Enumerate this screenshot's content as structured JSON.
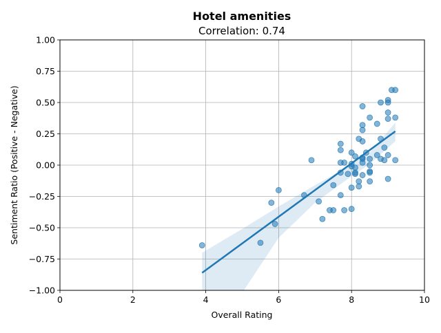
{
  "chart_data": {
    "type": "scatter",
    "title": "Hotel amenities",
    "subtitle": "Correlation: 0.74",
    "xlabel": "Overall Rating",
    "ylabel": "Sentiment Ratio (Positive - Negative)",
    "xlim": [
      0,
      10
    ],
    "ylim": [
      -1.0,
      1.0
    ],
    "xticks": [
      0,
      2,
      4,
      6,
      8,
      10
    ],
    "xtick_labels": [
      "0",
      "2",
      "4",
      "6",
      "8",
      "10"
    ],
    "yticks": [
      -1.0,
      -0.75,
      -0.5,
      -0.25,
      0.0,
      0.25,
      0.5,
      0.75,
      1.0
    ],
    "ytick_labels": [
      "−1.00",
      "−0.75",
      "−0.50",
      "−0.25",
      "0.00",
      "0.25",
      "0.50",
      "0.75",
      "1.00"
    ],
    "grid": true,
    "point_color": "#1f77b4",
    "line_color": "#1f77b4",
    "band_color": "#1f77b4",
    "points": [
      {
        "x": 3.9,
        "y": -0.64
      },
      {
        "x": 5.5,
        "y": -0.62
      },
      {
        "x": 5.8,
        "y": -0.3
      },
      {
        "x": 5.9,
        "y": -0.47
      },
      {
        "x": 6.0,
        "y": -0.2
      },
      {
        "x": 6.7,
        "y": -0.24
      },
      {
        "x": 6.9,
        "y": 0.04
      },
      {
        "x": 7.1,
        "y": -0.29
      },
      {
        "x": 7.2,
        "y": -0.43
      },
      {
        "x": 7.4,
        "y": -0.36
      },
      {
        "x": 7.5,
        "y": -0.36
      },
      {
        "x": 7.5,
        "y": -0.16
      },
      {
        "x": 7.7,
        "y": 0.17
      },
      {
        "x": 7.7,
        "y": 0.12
      },
      {
        "x": 7.7,
        "y": 0.02
      },
      {
        "x": 7.7,
        "y": -0.06
      },
      {
        "x": 7.7,
        "y": -0.24
      },
      {
        "x": 7.8,
        "y": -0.36
      },
      {
        "x": 7.8,
        "y": 0.02
      },
      {
        "x": 7.9,
        "y": -0.07
      },
      {
        "x": 8.0,
        "y": 0.1
      },
      {
        "x": 8.0,
        "y": 0.01
      },
      {
        "x": 8.0,
        "y": -0.01
      },
      {
        "x": 8.0,
        "y": -0.18
      },
      {
        "x": 8.0,
        "y": -0.35
      },
      {
        "x": 8.1,
        "y": 0.07
      },
      {
        "x": 8.1,
        "y": -0.02
      },
      {
        "x": 8.1,
        "y": -0.06
      },
      {
        "x": 8.1,
        "y": -0.07
      },
      {
        "x": 8.2,
        "y": 0.21
      },
      {
        "x": 8.2,
        "y": -0.13
      },
      {
        "x": 8.2,
        "y": -0.17
      },
      {
        "x": 8.3,
        "y": 0.47
      },
      {
        "x": 8.3,
        "y": 0.32
      },
      {
        "x": 8.3,
        "y": 0.28
      },
      {
        "x": 8.3,
        "y": 0.19
      },
      {
        "x": 8.3,
        "y": 0.06
      },
      {
        "x": 8.3,
        "y": 0.05
      },
      {
        "x": 8.3,
        "y": 0.02
      },
      {
        "x": 8.3,
        "y": -0.08
      },
      {
        "x": 8.4,
        "y": 0.1
      },
      {
        "x": 8.5,
        "y": 0.38
      },
      {
        "x": 8.5,
        "y": 0.05
      },
      {
        "x": 8.5,
        "y": 0.0
      },
      {
        "x": 8.5,
        "y": -0.05
      },
      {
        "x": 8.5,
        "y": -0.06
      },
      {
        "x": 8.5,
        "y": -0.13
      },
      {
        "x": 8.7,
        "y": 0.33
      },
      {
        "x": 8.7,
        "y": 0.08
      },
      {
        "x": 8.8,
        "y": 0.5
      },
      {
        "x": 8.8,
        "y": 0.21
      },
      {
        "x": 8.8,
        "y": 0.05
      },
      {
        "x": 8.9,
        "y": 0.14
      },
      {
        "x": 8.9,
        "y": 0.04
      },
      {
        "x": 9.0,
        "y": 0.52
      },
      {
        "x": 9.0,
        "y": 0.5
      },
      {
        "x": 9.0,
        "y": 0.42
      },
      {
        "x": 9.0,
        "y": 0.37
      },
      {
        "x": 9.0,
        "y": 0.08
      },
      {
        "x": 9.0,
        "y": -0.11
      },
      {
        "x": 9.1,
        "y": 0.6
      },
      {
        "x": 9.2,
        "y": 0.6
      },
      {
        "x": 9.2,
        "y": 0.38
      },
      {
        "x": 9.2,
        "y": 0.04
      }
    ],
    "regression_line": {
      "x": [
        3.9,
        9.2
      ],
      "y": [
        -0.86,
        0.27
      ]
    },
    "confidence_band": {
      "x": [
        3.9,
        5.0,
        6.0,
        7.0,
        7.8,
        8.5,
        9.2
      ],
      "upper": [
        -0.7,
        -0.51,
        -0.33,
        -0.16,
        -0.03,
        0.1,
        0.34
      ],
      "lower": [
        -1.02,
        -1.02,
        -0.58,
        -0.3,
        -0.13,
        0.01,
        0.19
      ]
    }
  }
}
